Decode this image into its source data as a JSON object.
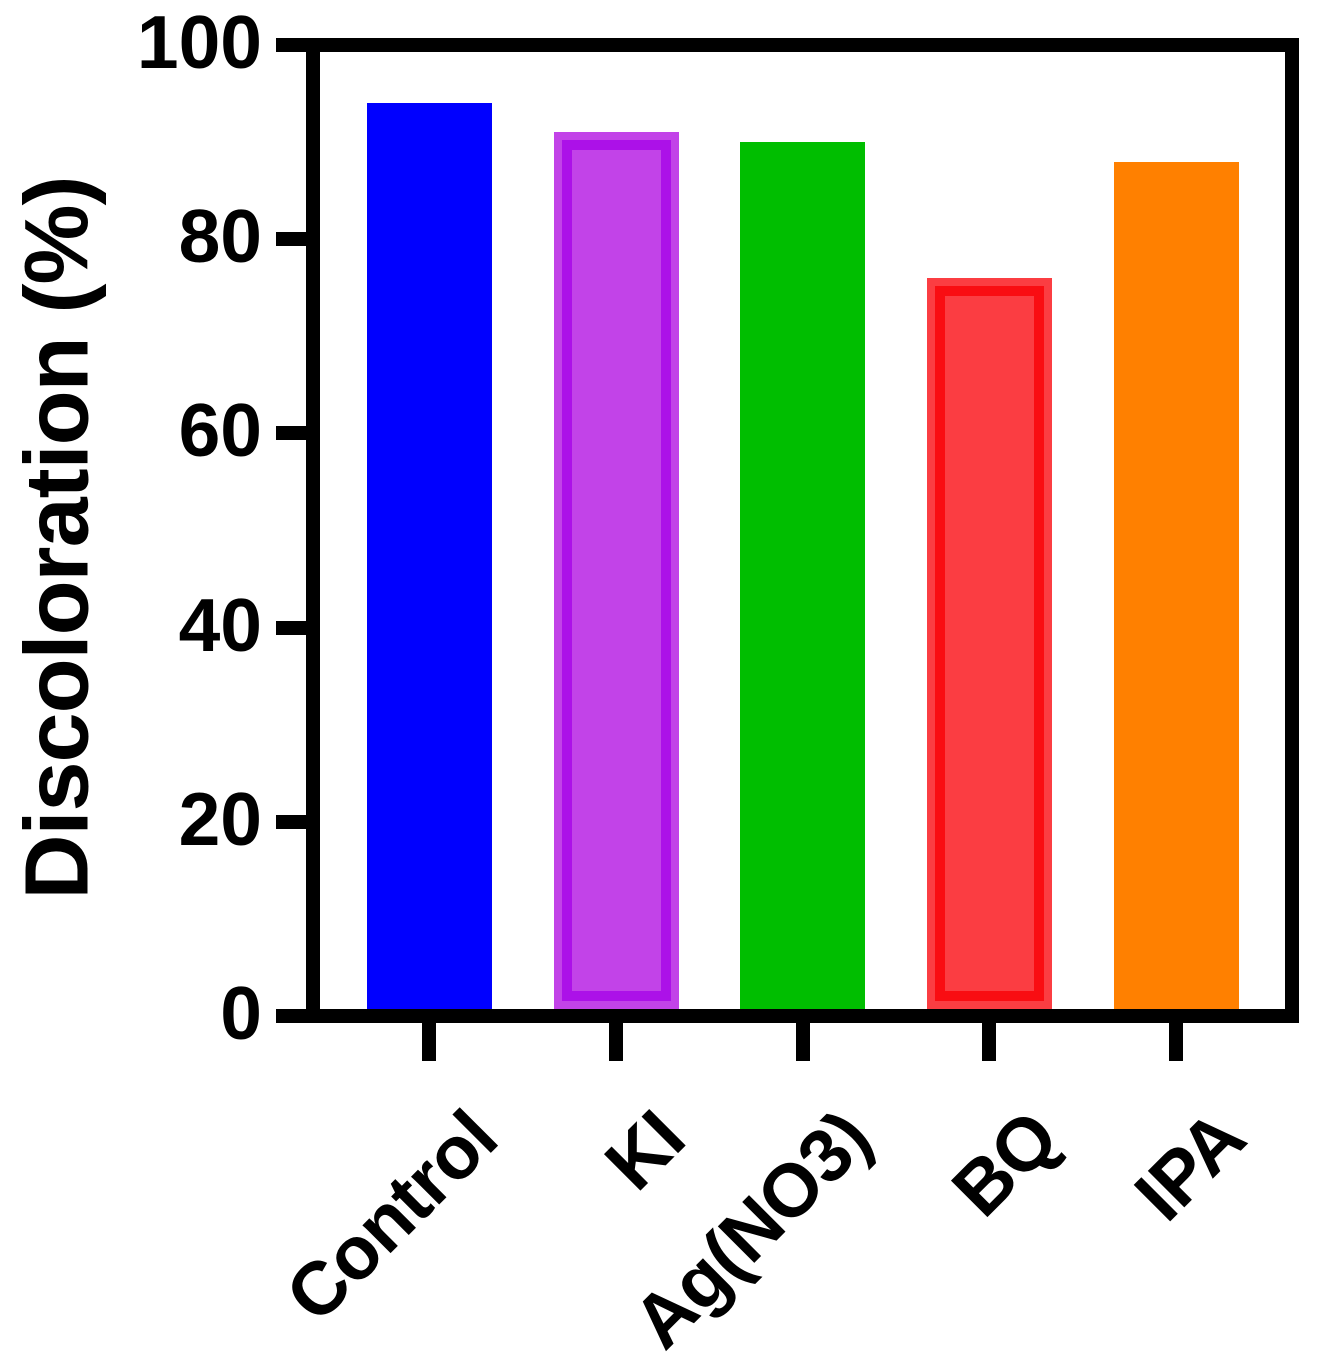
{
  "chart_data": {
    "type": "bar",
    "title": "",
    "categories": [
      "Control",
      "KI",
      "Ag(NO3)",
      "BQ",
      "IPA"
    ],
    "values": [
      94,
      91,
      90,
      76,
      88
    ],
    "bar_styles": [
      {
        "fill": "#0000FF",
        "border": "#0000FF"
      },
      {
        "fill": "#C243E8",
        "border": "#AC11E8"
      },
      {
        "fill": "#00BE00",
        "border": "#00BE00"
      },
      {
        "fill": "#FB3D42",
        "border": "#F90D12"
      },
      {
        "fill": "#FF8000",
        "border": "#FF8000"
      }
    ],
    "xlabel": "",
    "ylabel": "Discoloration (%)",
    "ylim": [
      0,
      100
    ],
    "yticks": [
      0,
      20,
      40,
      60,
      80,
      100
    ],
    "grid": false,
    "legend": "none",
    "axis_color": "#000000",
    "background": "#FFFFFF"
  }
}
